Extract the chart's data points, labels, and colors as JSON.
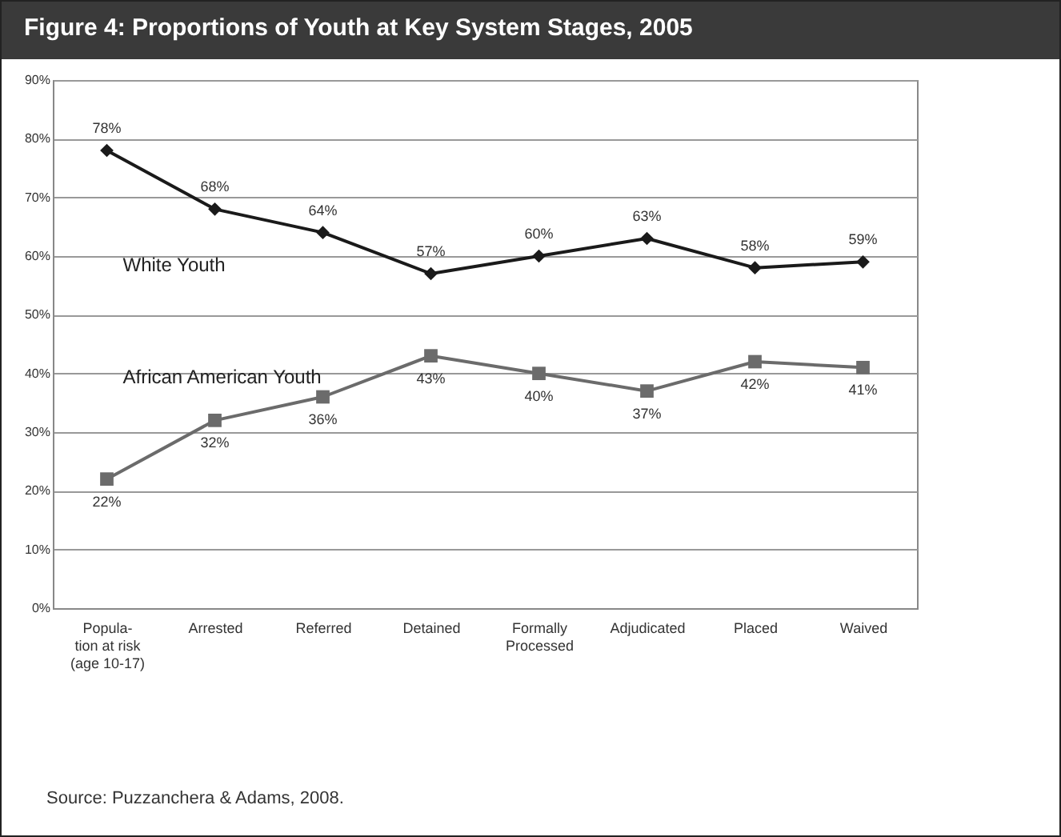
{
  "chart_data": {
    "type": "line",
    "title": "Figure 4: Proportions of Youth at Key System Stages, 2005",
    "categories": [
      "Popula-\ntion at risk\n(age 10-17)",
      "Arrested",
      "Referred",
      "Detained",
      "Formally\nProcessed",
      "Adjudicated",
      "Placed",
      "Waived"
    ],
    "series": [
      {
        "name": "White Youth",
        "color": "#1a1a1a",
        "marker": "diamond",
        "values": [
          78,
          68,
          64,
          57,
          60,
          63,
          58,
          59
        ],
        "value_labels": [
          "78%",
          "68%",
          "64%",
          "57%",
          "60%",
          "63%",
          "58%",
          "59%"
        ]
      },
      {
        "name": "African American Youth",
        "color": "#6b6b6b",
        "marker": "square",
        "values": [
          22,
          32,
          36,
          43,
          40,
          37,
          42,
          41
        ],
        "value_labels": [
          "22%",
          "32%",
          "36%",
          "43%",
          "40%",
          "37%",
          "42%",
          "41%"
        ]
      }
    ],
    "ylim": [
      0,
      90
    ],
    "yticks": [
      {
        "value": 0,
        "label": "0%"
      },
      {
        "value": 10,
        "label": "10%"
      },
      {
        "value": 20,
        "label": "20%"
      },
      {
        "value": 30,
        "label": "30%"
      },
      {
        "value": 40,
        "label": "40%"
      },
      {
        "value": 50,
        "label": "50%"
      },
      {
        "value": 60,
        "label": "60%"
      },
      {
        "value": 70,
        "label": "70%"
      },
      {
        "value": 80,
        "label": "80%"
      },
      {
        "value": 90,
        "label": "90%"
      }
    ],
    "grid": "y",
    "legend": false,
    "annotations": [
      "Source: Puzzanchera & Adams, 2008."
    ]
  }
}
